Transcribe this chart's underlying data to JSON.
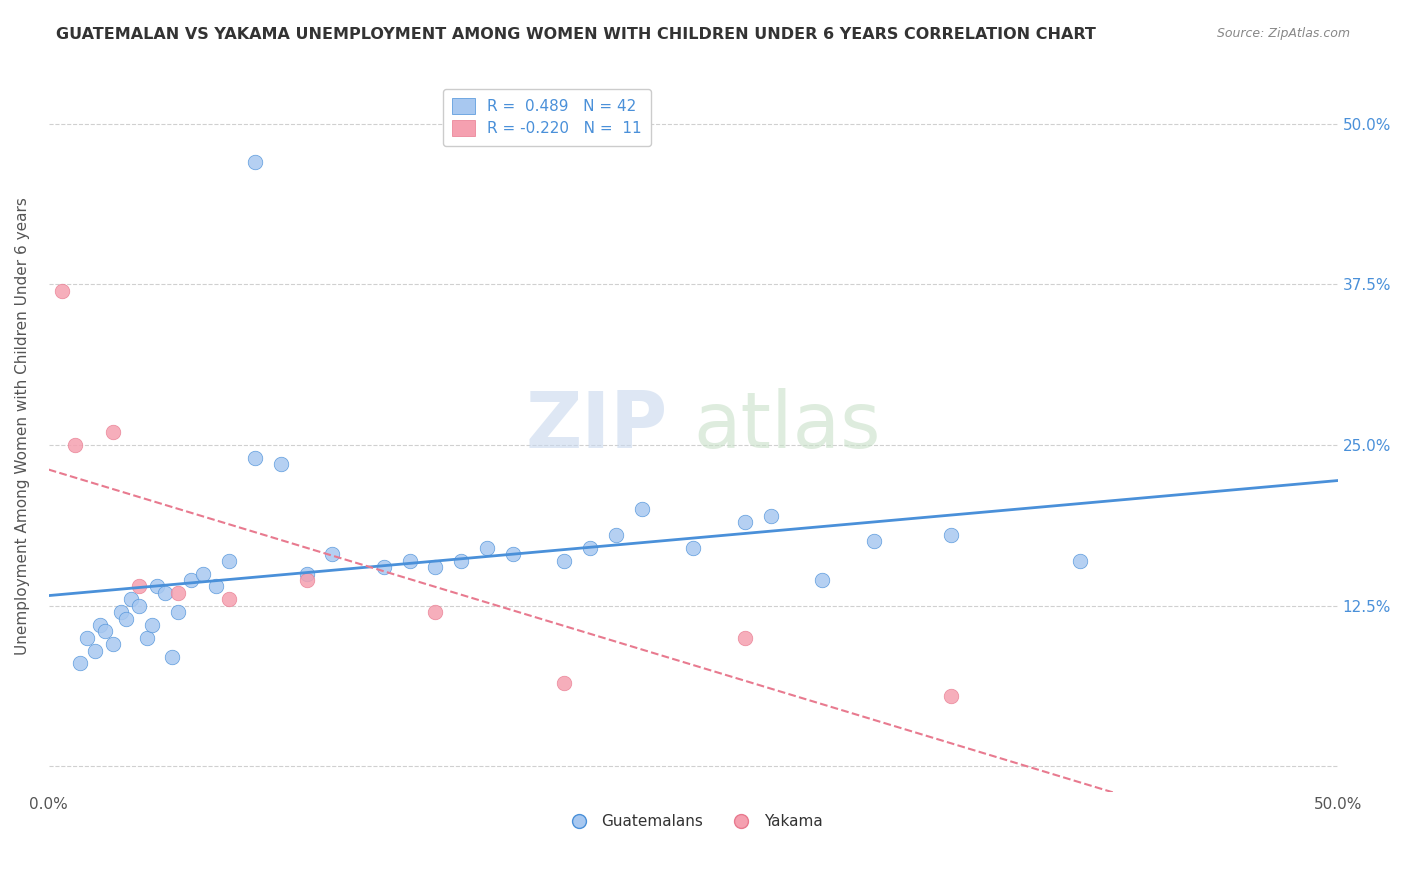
{
  "title": "GUATEMALAN VS YAKAMA UNEMPLOYMENT AMONG WOMEN WITH CHILDREN UNDER 6 YEARS CORRELATION CHART",
  "source": "Source: ZipAtlas.com",
  "ylabel": "Unemployment Among Women with Children Under 6 years",
  "xlim": [
    0.0,
    50.0
  ],
  "ylim": [
    -2.0,
    55.0
  ],
  "yticks": [
    0.0,
    12.5,
    25.0,
    37.5,
    50.0
  ],
  "ytick_labels": [
    "",
    "12.5%",
    "25.0%",
    "37.5%",
    "50.0%"
  ],
  "legend_entries": [
    {
      "label": "R =  0.489   N = 42"
    },
    {
      "label": "R = -0.220   N =  11"
    }
  ],
  "guatemalan_x": [
    1.2,
    1.5,
    1.8,
    2.0,
    2.2,
    2.5,
    2.8,
    3.0,
    3.2,
    3.5,
    3.8,
    4.0,
    4.2,
    4.5,
    4.8,
    5.0,
    5.5,
    6.0,
    6.5,
    7.0,
    8.0,
    9.0,
    10.0,
    11.0,
    13.0,
    14.0,
    15.0,
    16.0,
    17.0,
    18.0,
    20.0,
    21.0,
    22.0,
    23.0,
    25.0,
    27.0,
    28.0,
    30.0,
    32.0,
    35.0,
    40.0,
    8.0
  ],
  "guatemalan_y": [
    8.0,
    10.0,
    9.0,
    11.0,
    10.5,
    9.5,
    12.0,
    11.5,
    13.0,
    12.5,
    10.0,
    11.0,
    14.0,
    13.5,
    8.5,
    12.0,
    14.5,
    15.0,
    14.0,
    16.0,
    24.0,
    23.5,
    15.0,
    16.5,
    15.5,
    16.0,
    15.5,
    16.0,
    17.0,
    16.5,
    16.0,
    17.0,
    18.0,
    20.0,
    17.0,
    19.0,
    19.5,
    14.5,
    17.5,
    18.0,
    16.0,
    47.0
  ],
  "yakama_x": [
    0.5,
    1.0,
    2.5,
    3.5,
    5.0,
    7.0,
    10.0,
    15.0,
    20.0,
    27.0,
    35.0
  ],
  "yakama_y": [
    37.0,
    25.0,
    26.0,
    14.0,
    13.5,
    13.0,
    14.5,
    12.0,
    6.5,
    10.0,
    5.5
  ],
  "blue_line_color": "#4a90d9",
  "pink_line_color": "#e87a8f",
  "dot_blue": "#a8c8f0",
  "dot_pink": "#f5a0b0",
  "background_color": "#ffffff",
  "grid_color": "#d0d0d0",
  "title_color": "#333333",
  "axis_label_color": "#555555",
  "right_axis_color": "#4a90d9"
}
